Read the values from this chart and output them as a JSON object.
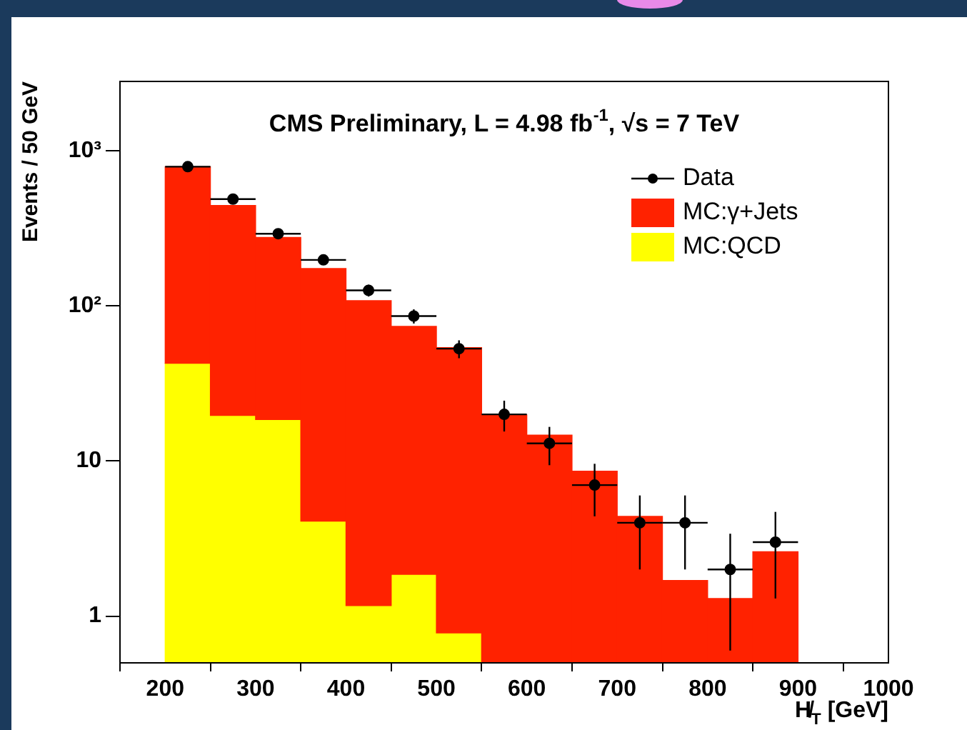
{
  "chart_data": {
    "type": "bar",
    "title": "CMS Preliminary, L = 4.98 fb$^{-1}$, √s = 7 TeV",
    "xlabel": "H̸$_{T}$ [GeV]",
    "ylabel": "Events / 50 GeV",
    "x": [
      225,
      275,
      325,
      375,
      425,
      475,
      525,
      575,
      625,
      675,
      725,
      775,
      825,
      875
    ],
    "series": [
      {
        "name": "Data",
        "type": "scatter",
        "color": "#000000",
        "x": [
          225,
          275,
          325,
          375,
          425,
          475,
          525,
          575,
          625,
          675,
          725,
          775,
          825,
          875
        ],
        "values": [
          790,
          488,
          292,
          198,
          126,
          86,
          53,
          20,
          13,
          7,
          4,
          4,
          2,
          3
        ],
        "errors": [
          28,
          22,
          17,
          14,
          11,
          9,
          7,
          4.5,
          3.6,
          2.6,
          2,
          2,
          1.4,
          1.7
        ],
        "xerrors": [
          25,
          25,
          25,
          25,
          25,
          25,
          25,
          25,
          25,
          25,
          25,
          25,
          25,
          25
        ]
      },
      {
        "name": "MC:QCD",
        "color": "#ffff00",
        "values": [
          42.7,
          19.7,
          18.5,
          4.1,
          1.17,
          1.86,
          0.78,
          null,
          null,
          null,
          null,
          null,
          null,
          null
        ]
      },
      {
        "name": "MC:γ+Jets",
        "color": "#ff2200",
        "values": [
          747,
          425,
          258,
          170,
          107,
          72,
          53,
          19.8,
          14.7,
          8.6,
          4.4,
          1.7,
          1.3,
          2.6
        ]
      }
    ],
    "stacked": true,
    "log": "y",
    "xlim": [
      150,
      1000
    ],
    "ylim": [
      0.5,
      2800
    ],
    "xticks": [
      200,
      300,
      400,
      500,
      600,
      700,
      800,
      900,
      1000
    ],
    "yticks": [
      1,
      10,
      {
        "value": 100,
        "label": "10²"
      },
      {
        "value": 1000,
        "label": "10³"
      }
    ],
    "grid": false,
    "legend": "top right",
    "marker": "circle"
  }
}
